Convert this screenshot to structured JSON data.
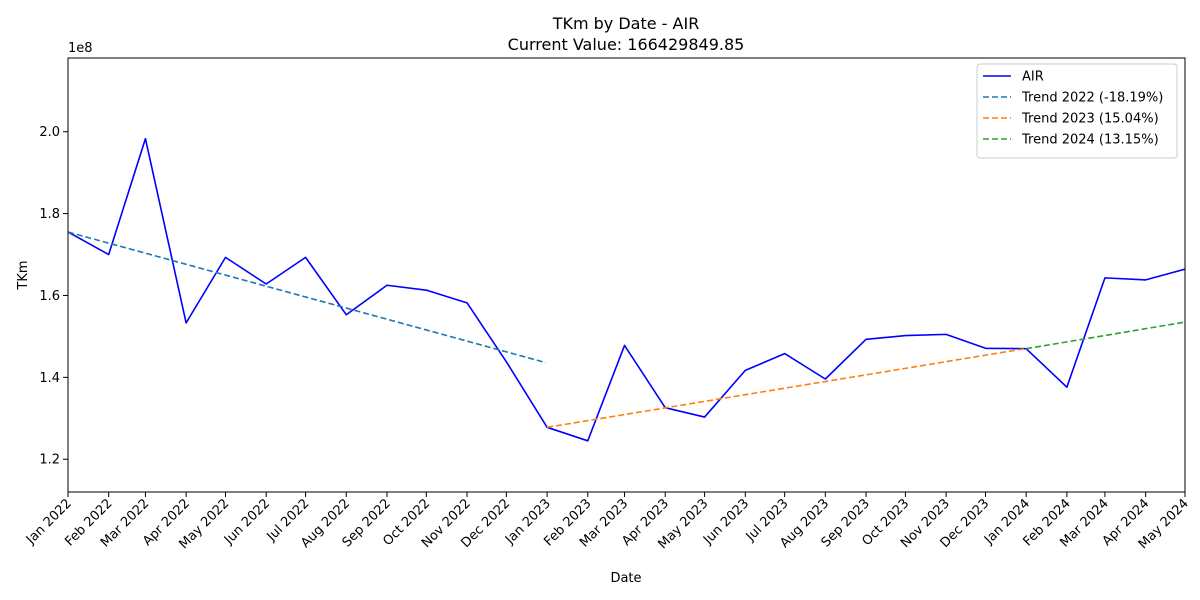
{
  "chart_data": {
    "type": "line",
    "title": "TKm by Date - AIR",
    "subtitle": "Current Value: 166429849.85",
    "xlabel": "Date",
    "ylabel": "TKm",
    "y_offset_label": "1e8",
    "y_scale": 100000000,
    "ylim": [
      112000000,
      218000000
    ],
    "yticks": [
      120000000,
      140000000,
      160000000,
      180000000,
      200000000
    ],
    "ytick_labels": [
      "1.2",
      "1.4",
      "1.6",
      "1.8",
      "2.0"
    ],
    "x": [
      "2022-01-01",
      "2022-02-01",
      "2022-03-01",
      "2022-04-01",
      "2022-05-01",
      "2022-06-01",
      "2022-07-01",
      "2022-08-01",
      "2022-09-01",
      "2022-10-01",
      "2022-11-01",
      "2022-12-01",
      "2023-01-01",
      "2023-02-01",
      "2023-03-01",
      "2023-04-01",
      "2023-05-01",
      "2023-06-01",
      "2023-07-01",
      "2023-08-01",
      "2023-09-01",
      "2023-10-01",
      "2023-11-01",
      "2023-12-01",
      "2024-01-01",
      "2024-02-01",
      "2024-03-01",
      "2024-04-01",
      "2024-05-01"
    ],
    "xtick_labels": [
      "Jan 2022",
      "Feb 2022",
      "Mar 2022",
      "Apr 2022",
      "May 2022",
      "Jun 2022",
      "Jul 2022",
      "Aug 2022",
      "Sep 2022",
      "Oct 2022",
      "Nov 2022",
      "Dec 2022",
      "Jan 2023",
      "Feb 2023",
      "Mar 2023",
      "Apr 2023",
      "May 2023",
      "Jun 2023",
      "Jul 2023",
      "Aug 2023",
      "Sep 2023",
      "Oct 2023",
      "Nov 2023",
      "Dec 2023",
      "Jan 2024",
      "Feb 2024",
      "Mar 2024",
      "Apr 2024",
      "May 2024"
    ],
    "series": [
      {
        "name": "AIR",
        "style": "solid",
        "color": "#0000ff",
        "x": [
          "2022-01-01",
          "2022-02-01",
          "2022-03-01",
          "2022-04-01",
          "2022-05-01",
          "2022-06-01",
          "2022-07-01",
          "2022-08-01",
          "2022-09-01",
          "2022-10-01",
          "2022-11-01",
          "2022-12-01",
          "2023-01-01",
          "2023-02-01",
          "2023-03-01",
          "2023-04-01",
          "2023-05-01",
          "2023-06-01",
          "2023-07-01",
          "2023-08-01",
          "2023-09-01",
          "2023-10-01",
          "2023-11-01",
          "2023-12-01",
          "2024-01-01",
          "2024-02-01",
          "2024-03-01",
          "2024-04-01",
          "2024-05-01"
        ],
        "values": [
          175500000,
          170000000,
          198300000,
          153300000,
          169300000,
          162800000,
          169300000,
          155300000,
          162500000,
          161300000,
          158200000,
          143800000,
          127800000,
          124500000,
          147800000,
          132600000,
          130300000,
          141700000,
          145800000,
          139600000,
          149300000,
          150200000,
          150500000,
          147100000,
          147000000,
          137600000,
          164300000,
          163800000,
          166429849.85
        ]
      },
      {
        "name": "Trend 2022 (-18.19%)",
        "style": "dashed",
        "color": "#1f77b4",
        "x": [
          "2022-01-01",
          "2022-12-31"
        ],
        "values": [
          175500000,
          143600000
        ]
      },
      {
        "name": "Trend 2023 (15.04%)",
        "style": "dashed",
        "color": "#ff7f0e",
        "x": [
          "2023-01-01",
          "2023-12-31"
        ],
        "values": [
          127800000,
          147000000
        ]
      },
      {
        "name": "Trend 2024 (13.15%)",
        "style": "dashed",
        "color": "#2ca02c",
        "x": [
          "2024-01-01",
          "2024-05-01"
        ],
        "values": [
          147000000,
          153500000
        ]
      }
    ],
    "legend_position": "top-right",
    "grid": false
  }
}
